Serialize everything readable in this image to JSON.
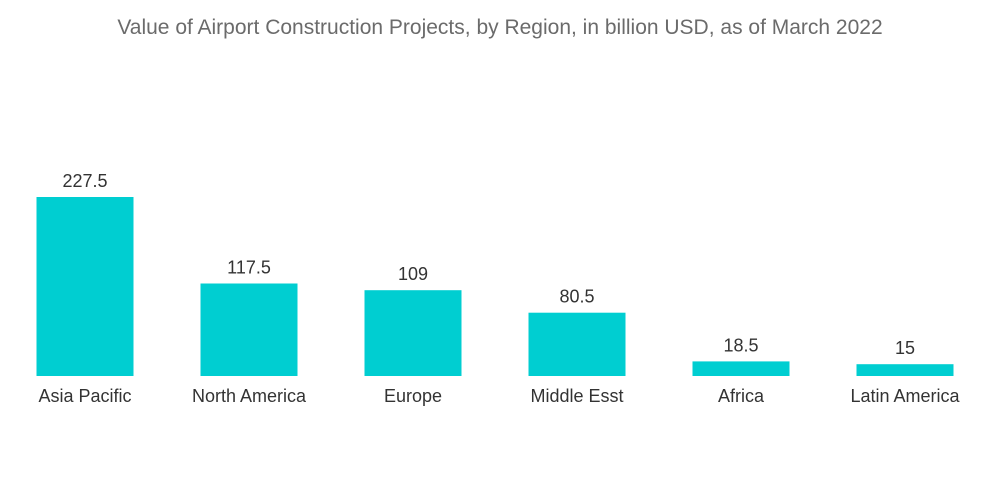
{
  "chart_data": {
    "type": "bar",
    "title": "Value of Airport Construction Projects, by Region, in billion USD, as of March 2022",
    "categories": [
      "Asia Pacific",
      "North America",
      "Europe",
      "Middle Esst",
      "Africa",
      "Latin America"
    ],
    "values": [
      227.5,
      117.5,
      109,
      80.5,
      18.5,
      15
    ],
    "value_labels": [
      "227.5",
      "117.5",
      "109",
      "80.5",
      "18.5",
      "15"
    ],
    "xlabel": "",
    "ylabel": "",
    "ylim": [
      0,
      227.5
    ],
    "grid": false,
    "legend": "none",
    "colors": {
      "bar": "#00ced1",
      "text": "#333333",
      "title": "#6b6b6b"
    }
  }
}
